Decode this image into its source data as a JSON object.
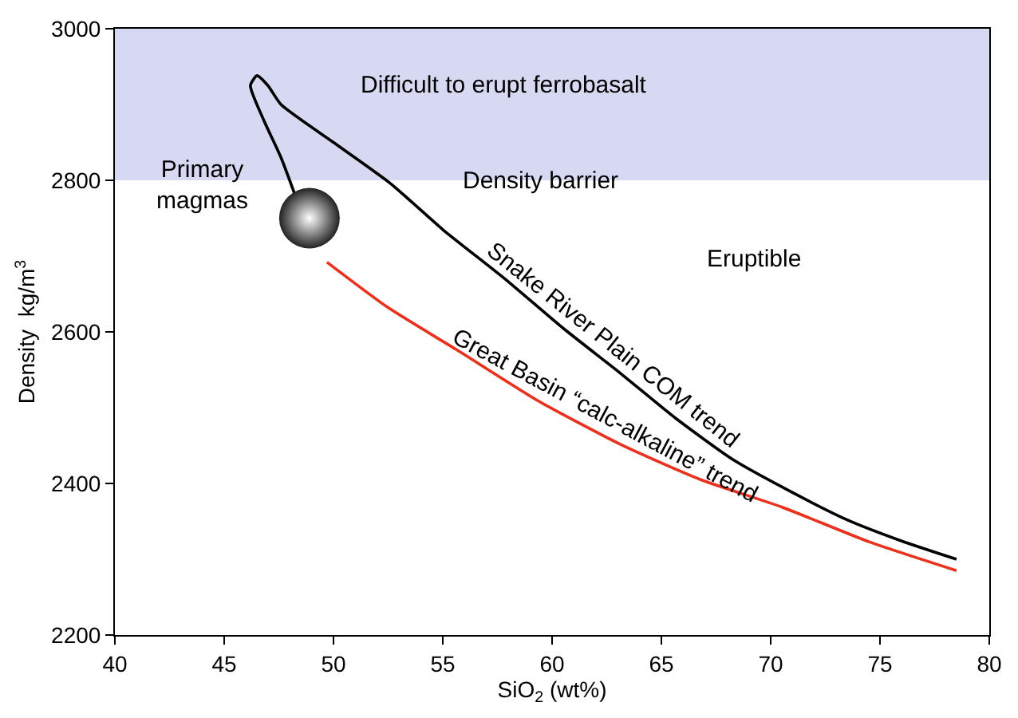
{
  "chart_data": {
    "type": "line",
    "xlabel": "SiO$_{2}$ (wt%)",
    "ylabel": "Density  kg/m$^{3}$",
    "xlim": [
      40,
      80
    ],
    "xticks": [
      40,
      45,
      50,
      55,
      60,
      65,
      70,
      75,
      80
    ],
    "ylim": [
      2200,
      3000
    ],
    "yticks": [
      2200,
      2400,
      2600,
      2800,
      3000
    ],
    "grid": false,
    "marker": "none",
    "line_style": "solid",
    "series": [
      {
        "color": "#000000",
        "x": [
          48.5,
          47.6,
          46.8,
          46.2,
          46.5,
          47.0,
          47.6,
          50.0,
          52.6,
          55.0,
          57.8,
          60.5,
          63.1,
          65.7,
          68.3,
          71.0,
          73.5,
          76.0,
          78.5
        ],
        "values": [
          2760,
          2830,
          2880,
          2925,
          2938,
          2925,
          2900,
          2850,
          2796,
          2735,
          2671,
          2605,
          2546,
          2485,
          2431,
          2388,
          2352,
          2324,
          2300
        ]
      },
      {
        "color": "#e8321e",
        "x": [
          49.7,
          52.5,
          55.6,
          59.3,
          63.1,
          66.8,
          70.5,
          74.5,
          78.5
        ],
        "values": [
          2692,
          2632,
          2577,
          2510,
          2452,
          2405,
          2369,
          2323,
          2285
        ]
      },
      {
        "type": "scatter",
        "marker": "circle",
        "color": "#222222",
        "x": [
          48.9
        ],
        "values": [
          2750
        ]
      }
    ],
    "bands": [
      {
        "axis": "y",
        "from": 2800,
        "to": 3000,
        "color": "#d7d9f2"
      }
    ],
    "annotations": [
      "Difficult to erupt ferrobasalt",
      {
        "text": "Density barrier",
        "x": 59.5,
        "y": 2800
      },
      "Eruptible",
      {
        "text": "Primary\nmagmas",
        "x": 44.0,
        "y": 2792
      },
      {
        "text": "Snake River Plain COM trend",
        "x": 62.3,
        "y": 2565
      },
      {
        "text": "Great Basin “calc-alkaline” trend",
        "x": 62.0,
        "y": 2469
      }
    ]
  }
}
